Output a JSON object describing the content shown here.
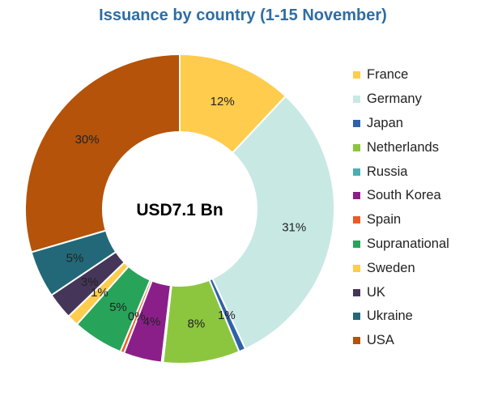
{
  "chart_data": {
    "type": "pie",
    "subtype": "donut",
    "title": "Issuance by country (1-15 November)",
    "center_label": "USD7.1 Bn",
    "legend_position": "right",
    "slices": [
      {
        "name": "France",
        "value": 12,
        "label": "12%",
        "color": "#ffcc4d"
      },
      {
        "name": "Germany",
        "value": 31,
        "label": "31%",
        "color": "#c8e8e4"
      },
      {
        "name": "Japan",
        "value": 0.7,
        "label": "1%",
        "color": "#2f62a8"
      },
      {
        "name": "Netherlands",
        "value": 8,
        "label": "8%",
        "color": "#8cc63e"
      },
      {
        "name": "Russia",
        "value": 0.15,
        "label": "",
        "color": "#4aafb3"
      },
      {
        "name": "South Korea",
        "value": 4,
        "label": "4%",
        "color": "#8b1f8a"
      },
      {
        "name": "Spain",
        "value": 0.4,
        "label": "0%",
        "color": "#ec5a26"
      },
      {
        "name": "Supranational",
        "value": 5.3,
        "label": "5%",
        "color": "#27a45a"
      },
      {
        "name": "Sweden",
        "value": 1.2,
        "label": "1%",
        "color": "#ffcc4d"
      },
      {
        "name": "UK",
        "value": 2.8,
        "label": "3%",
        "color": "#453659"
      },
      {
        "name": "Ukraine",
        "value": 4.9,
        "label": "5%",
        "color": "#236878"
      },
      {
        "name": "USA",
        "value": 29.5,
        "label": "30%",
        "color": "#b45309"
      }
    ]
  }
}
